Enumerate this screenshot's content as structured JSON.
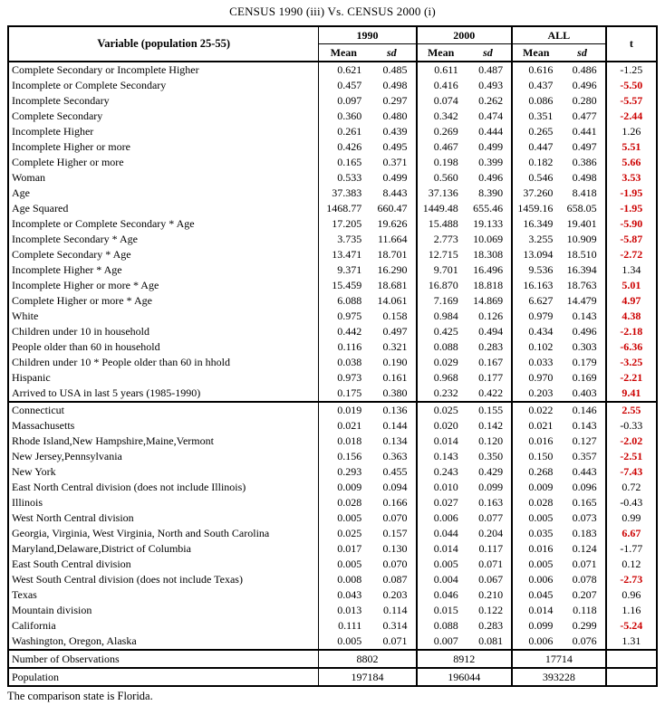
{
  "title": "CENSUS 1990 (iii) Vs. CENSUS 2000 (i)",
  "footnote": "The comparison state is Florida.",
  "colors": {
    "significant_t": "#cc0000",
    "text": "#000000",
    "border": "#000000"
  },
  "table": {
    "variable_header": "Variable (population 25-55)",
    "groups": [
      "1990",
      "2000",
      "ALL"
    ],
    "mean_label": "Mean",
    "sd_label": "sd",
    "t_label": "t",
    "sections": [
      {
        "rows": [
          {
            "label": "Complete Secondary or Incomplete Higher",
            "values": [
              "0.621",
              "0.485",
              "0.611",
              "0.487",
              "0.616",
              "0.486"
            ],
            "t": "-1.25",
            "significant": false
          },
          {
            "label": "Incomplete or Complete Secondary",
            "values": [
              "0.457",
              "0.498",
              "0.416",
              "0.493",
              "0.437",
              "0.496"
            ],
            "t": "-5.50",
            "significant": true
          },
          {
            "label": "Incomplete Secondary",
            "values": [
              "0.097",
              "0.297",
              "0.074",
              "0.262",
              "0.086",
              "0.280"
            ],
            "t": "-5.57",
            "significant": true
          },
          {
            "label": "Complete Secondary",
            "values": [
              "0.360",
              "0.480",
              "0.342",
              "0.474",
              "0.351",
              "0.477"
            ],
            "t": "-2.44",
            "significant": true
          },
          {
            "label": "Incomplete Higher",
            "values": [
              "0.261",
              "0.439",
              "0.269",
              "0.444",
              "0.265",
              "0.441"
            ],
            "t": "1.26",
            "significant": false
          },
          {
            "label": "Incomplete Higher or more",
            "values": [
              "0.426",
              "0.495",
              "0.467",
              "0.499",
              "0.447",
              "0.497"
            ],
            "t": "5.51",
            "significant": true
          },
          {
            "label": "Complete Higher or more",
            "values": [
              "0.165",
              "0.371",
              "0.198",
              "0.399",
              "0.182",
              "0.386"
            ],
            "t": "5.66",
            "significant": true
          },
          {
            "label": "Woman",
            "values": [
              "0.533",
              "0.499",
              "0.560",
              "0.496",
              "0.546",
              "0.498"
            ],
            "t": "3.53",
            "significant": true
          },
          {
            "label": "Age",
            "values": [
              "37.383",
              "8.443",
              "37.136",
              "8.390",
              "37.260",
              "8.418"
            ],
            "t": "-1.95",
            "significant": true
          },
          {
            "label": "Age Squared",
            "values": [
              "1468.77",
              "660.47",
              "1449.48",
              "655.46",
              "1459.16",
              "658.05"
            ],
            "t": "-1.95",
            "significant": true
          },
          {
            "label": "Incomplete or Complete Secondary * Age",
            "values": [
              "17.205",
              "19.626",
              "15.488",
              "19.133",
              "16.349",
              "19.401"
            ],
            "t": "-5.90",
            "significant": true
          },
          {
            "label": "Incomplete Secondary * Age",
            "values": [
              "3.735",
              "11.664",
              "2.773",
              "10.069",
              "3.255",
              "10.909"
            ],
            "t": "-5.87",
            "significant": true
          },
          {
            "label": "Complete Secondary * Age",
            "values": [
              "13.471",
              "18.701",
              "12.715",
              "18.308",
              "13.094",
              "18.510"
            ],
            "t": "-2.72",
            "significant": true
          },
          {
            "label": "Incomplete Higher * Age",
            "values": [
              "9.371",
              "16.290",
              "9.701",
              "16.496",
              "9.536",
              "16.394"
            ],
            "t": "1.34",
            "significant": false
          },
          {
            "label": "Incomplete Higher or more * Age",
            "values": [
              "15.459",
              "18.681",
              "16.870",
              "18.818",
              "16.163",
              "18.763"
            ],
            "t": "5.01",
            "significant": true
          },
          {
            "label": "Complete Higher or more * Age",
            "values": [
              "6.088",
              "14.061",
              "7.169",
              "14.869",
              "6.627",
              "14.479"
            ],
            "t": "4.97",
            "significant": true
          },
          {
            "label": "White",
            "values": [
              "0.975",
              "0.158",
              "0.984",
              "0.126",
              "0.979",
              "0.143"
            ],
            "t": "4.38",
            "significant": true
          },
          {
            "label": "Children under 10 in household",
            "values": [
              "0.442",
              "0.497",
              "0.425",
              "0.494",
              "0.434",
              "0.496"
            ],
            "t": "-2.18",
            "significant": true
          },
          {
            "label": "People older than 60 in household",
            "values": [
              "0.116",
              "0.321",
              "0.088",
              "0.283",
              "0.102",
              "0.303"
            ],
            "t": "-6.36",
            "significant": true
          },
          {
            "label": "Children under 10 * People older than 60 in hhold",
            "values": [
              "0.038",
              "0.190",
              "0.029",
              "0.167",
              "0.033",
              "0.179"
            ],
            "t": "-3.25",
            "significant": true
          },
          {
            "label": "Hispanic",
            "values": [
              "0.973",
              "0.161",
              "0.968",
              "0.177",
              "0.970",
              "0.169"
            ],
            "t": "-2.21",
            "significant": true
          },
          {
            "label": "Arrived to USA in last 5 years (1985-1990)",
            "values": [
              "0.175",
              "0.380",
              "0.232",
              "0.422",
              "0.203",
              "0.403"
            ],
            "t": "9.41",
            "significant": true
          }
        ]
      },
      {
        "rows": [
          {
            "label": "Connecticut",
            "values": [
              "0.019",
              "0.136",
              "0.025",
              "0.155",
              "0.022",
              "0.146"
            ],
            "t": "2.55",
            "significant": true
          },
          {
            "label": "Massachusetts",
            "values": [
              "0.021",
              "0.144",
              "0.020",
              "0.142",
              "0.021",
              "0.143"
            ],
            "t": "-0.33",
            "significant": false
          },
          {
            "label": "Rhode Island,New Hampshire,Maine,Vermont",
            "values": [
              "0.018",
              "0.134",
              "0.014",
              "0.120",
              "0.016",
              "0.127"
            ],
            "t": "-2.02",
            "significant": true
          },
          {
            "label": "New Jersey,Pennsylvania",
            "values": [
              "0.156",
              "0.363",
              "0.143",
              "0.350",
              "0.150",
              "0.357"
            ],
            "t": "-2.51",
            "significant": true
          },
          {
            "label": "New York",
            "values": [
              "0.293",
              "0.455",
              "0.243",
              "0.429",
              "0.268",
              "0.443"
            ],
            "t": "-7.43",
            "significant": true
          },
          {
            "label": "East North Central division  (does not include Illinois)",
            "values": [
              "0.009",
              "0.094",
              "0.010",
              "0.099",
              "0.009",
              "0.096"
            ],
            "t": "0.72",
            "significant": false
          },
          {
            "label": "Illinois",
            "values": [
              "0.028",
              "0.166",
              "0.027",
              "0.163",
              "0.028",
              "0.165"
            ],
            "t": "-0.43",
            "significant": false
          },
          {
            "label": "West North Central division",
            "values": [
              "0.005",
              "0.070",
              "0.006",
              "0.077",
              "0.005",
              "0.073"
            ],
            "t": "0.99",
            "significant": false
          },
          {
            "label": "Georgia, Virginia, West Virginia, North and South Carolina",
            "values": [
              "0.025",
              "0.157",
              "0.044",
              "0.204",
              "0.035",
              "0.183"
            ],
            "t": "6.67",
            "significant": true
          },
          {
            "label": "Maryland,Delaware,District of Columbia",
            "values": [
              "0.017",
              "0.130",
              "0.014",
              "0.117",
              "0.016",
              "0.124"
            ],
            "t": "-1.77",
            "significant": false
          },
          {
            "label": "East South Central division",
            "values": [
              "0.005",
              "0.070",
              "0.005",
              "0.071",
              "0.005",
              "0.071"
            ],
            "t": "0.12",
            "significant": false
          },
          {
            "label": "West South Central division  (does not include Texas)",
            "values": [
              "0.008",
              "0.087",
              "0.004",
              "0.067",
              "0.006",
              "0.078"
            ],
            "t": "-2.73",
            "significant": true
          },
          {
            "label": "Texas",
            "values": [
              "0.043",
              "0.203",
              "0.046",
              "0.210",
              "0.045",
              "0.207"
            ],
            "t": "0.96",
            "significant": false
          },
          {
            "label": "Mountain division",
            "values": [
              "0.013",
              "0.114",
              "0.015",
              "0.122",
              "0.014",
              "0.118"
            ],
            "t": "1.16",
            "significant": false
          },
          {
            "label": "California",
            "values": [
              "0.111",
              "0.314",
              "0.088",
              "0.283",
              "0.099",
              "0.299"
            ],
            "t": "-5.24",
            "significant": true
          },
          {
            "label": "Washington, Oregon, Alaska",
            "values": [
              "0.005",
              "0.071",
              "0.007",
              "0.081",
              "0.006",
              "0.076"
            ],
            "t": "1.31",
            "significant": false
          }
        ]
      }
    ],
    "summary": [
      {
        "label": "Number of Observations",
        "values": [
          "8802",
          "8912",
          "17714"
        ]
      },
      {
        "label": "Population",
        "values": [
          "197184",
          "196044",
          "393228"
        ]
      }
    ]
  }
}
